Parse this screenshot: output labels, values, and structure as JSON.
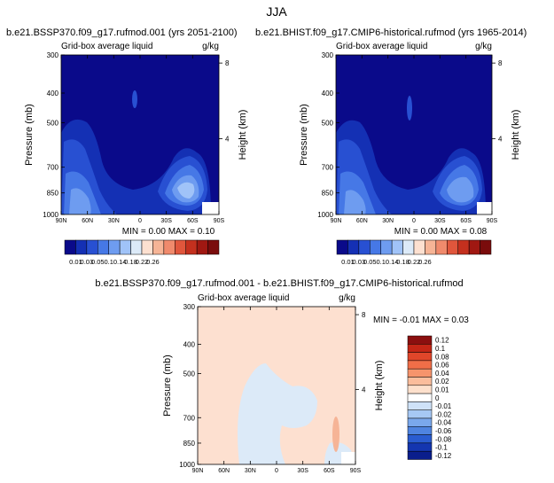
{
  "main_title": "JJA",
  "chart_data": [
    {
      "type": "contour",
      "title": "b.e21.BSSP370.f09_g17.rufmod.001 (yrs 2051-2100)",
      "subtitle_left": "Grid-box average liquid",
      "subtitle_right": "g/kg",
      "ylabel": "Pressure (mb)",
      "ylabel_right": "Height (km)",
      "x_ticks": [
        "90N",
        "60N",
        "30N",
        "0",
        "30S",
        "60S",
        "90S"
      ],
      "x_values": [
        90,
        60,
        30,
        0,
        -30,
        -60,
        -90
      ],
      "y_ticks": [
        300,
        400,
        500,
        700,
        850,
        1000
      ],
      "y_right_ticks": [
        8,
        4
      ],
      "stats_text": "MIN =   0.00   MAX =   0.10",
      "min": 0.0,
      "max": 0.1,
      "colorbar": [
        0.01,
        0.03,
        0.05,
        0.1,
        0.14,
        0.18,
        0.22,
        0.26
      ]
    },
    {
      "type": "contour",
      "title": "b.e21.BHIST.f09_g17.CMIP6-historical.rufmod (yrs 1965-2014)",
      "subtitle_left": "Grid-box average liquid",
      "subtitle_right": "g/kg",
      "ylabel": "Pressure (mb)",
      "ylabel_right": "Height (km)",
      "x_ticks": [
        "90N",
        "60N",
        "30N",
        "0",
        "30S",
        "60S",
        "90S"
      ],
      "x_values": [
        90,
        60,
        30,
        0,
        -30,
        -60,
        -90
      ],
      "y_ticks": [
        300,
        400,
        500,
        700,
        850,
        1000
      ],
      "y_right_ticks": [
        8,
        4
      ],
      "stats_text": "MIN =   0.00   MAX =   0.08",
      "min": 0.0,
      "max": 0.08,
      "colorbar": [
        0.01,
        0.03,
        0.05,
        0.1,
        0.14,
        0.18,
        0.22,
        0.26
      ]
    },
    {
      "type": "contour",
      "title": "b.e21.BSSP370.f09_g17.rufmod.001 - b.e21.BHIST.f09_g17.CMIP6-historical.rufmod",
      "subtitle_left": "Grid-box average liquid",
      "subtitle_right": "g/kg",
      "ylabel": "Pressure (mb)",
      "ylabel_right": "Height (km)",
      "x_ticks": [
        "90N",
        "60N",
        "30N",
        "0",
        "30S",
        "60S",
        "90S"
      ],
      "x_values": [
        90,
        60,
        30,
        0,
        -30,
        -60,
        -90
      ],
      "y_ticks": [
        300,
        400,
        500,
        700,
        850,
        1000
      ],
      "y_right_ticks": [
        8,
        4
      ],
      "stats_text": "MIN =  -0.01   MAX =   0.03",
      "min": -0.01,
      "max": 0.03,
      "colorbar": [
        0.12,
        0.1,
        0.08,
        0.06,
        0.04,
        0.02,
        0.01,
        0,
        -0.01,
        -0.02,
        -0.04,
        -0.06,
        -0.08,
        -0.1,
        -0.12
      ]
    }
  ],
  "colors": {
    "seq": [
      "#0a0a8a",
      "#1430b4",
      "#2850d2",
      "#4678e6",
      "#6e9cf0",
      "#a0c3f8",
      "#dceaf8",
      "#fde0d0",
      "#f6b496",
      "#f08a6c",
      "#e0563c",
      "#c4301e",
      "#a01812",
      "#7a0c0c"
    ],
    "diff_bar": [
      "#8b0f0f",
      "#c42616",
      "#e0462a",
      "#f06e48",
      "#f6946c",
      "#fbbd9c",
      "#fde0cc",
      "#ffffff",
      "#cfe2f8",
      "#a6c8f4",
      "#7aa8ec",
      "#4f84e0",
      "#2a5cd0",
      "#1436b0",
      "#0a1e8c"
    ]
  }
}
